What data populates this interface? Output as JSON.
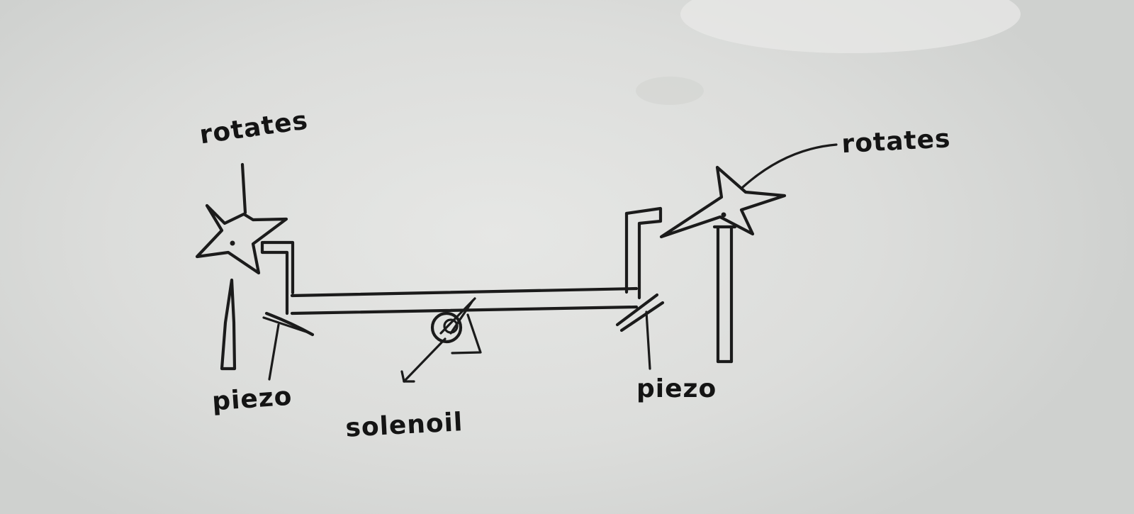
{
  "labels": {
    "rotates_left": "rotates",
    "rotates_right": "rotates",
    "piezo_left": "piezo",
    "piezo_right": "piezo",
    "solenoid": "solenoil"
  },
  "colors": {
    "ink": "#1b1b1b",
    "board": "#dcdddb"
  }
}
